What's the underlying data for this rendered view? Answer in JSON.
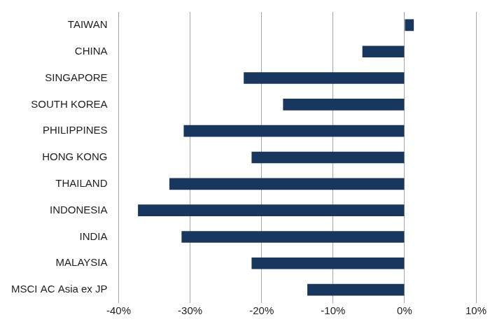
{
  "chart_data": {
    "type": "bar",
    "orientation": "horizontal",
    "categories": [
      "TAIWAN",
      "CHINA",
      "SINGAPORE",
      "SOUTH KOREA",
      "PHILIPPINES",
      "HONG KONG",
      "THAILAND",
      "INDONESIA",
      "INDIA",
      "MALAYSIA",
      "MSCI AC Asia ex JP"
    ],
    "values": [
      1.3,
      -5.9,
      -22.5,
      -17.0,
      -30.9,
      -21.4,
      -32.9,
      -37.3,
      -31.2,
      -21.4,
      -13.6
    ],
    "color": "#17375e",
    "xlim": [
      -40,
      10
    ],
    "xticks": [
      {
        "value": -40,
        "label": "-40%"
      },
      {
        "value": -30,
        "label": "-30%"
      },
      {
        "value": -20,
        "label": "-20%"
      },
      {
        "value": -10,
        "label": "-10%"
      },
      {
        "value": 0,
        "label": "0%"
      },
      {
        "value": 10,
        "label": "10%"
      }
    ],
    "grid": true
  }
}
